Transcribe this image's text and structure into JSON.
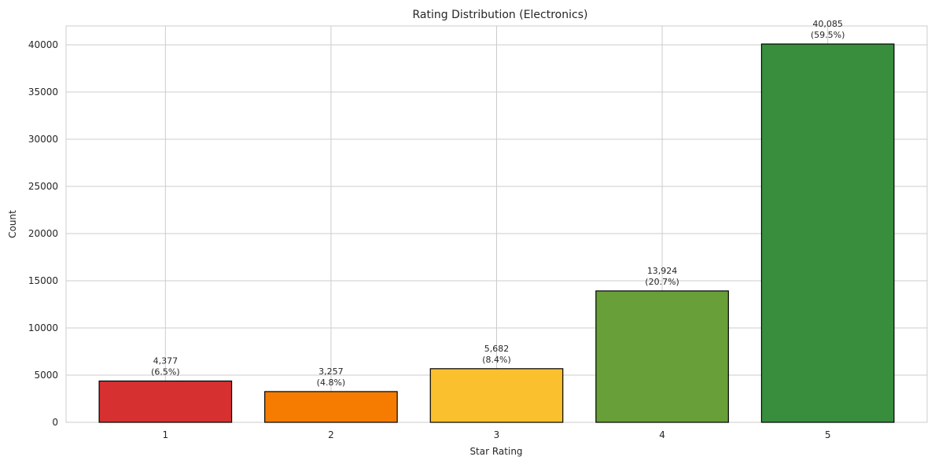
{
  "chart_data": {
    "type": "bar",
    "title": "Rating Distribution (Electronics)",
    "xlabel": "Star Rating",
    "ylabel": "Count",
    "categories": [
      "1",
      "2",
      "3",
      "4",
      "5"
    ],
    "values": [
      4377,
      3257,
      5682,
      13924,
      40085
    ],
    "value_labels": [
      "4,377",
      "3,257",
      "5,682",
      "13,924",
      "40,085"
    ],
    "percent_labels": [
      "(6.5%)",
      "(4.8%)",
      "(8.4%)",
      "(20.7%)",
      "(59.5%)"
    ],
    "colors": [
      "#d63031",
      "#f57c00",
      "#fbc02d",
      "#689f38",
      "#388e3c"
    ],
    "ylim": [
      0,
      42000
    ],
    "yticks": [
      0,
      5000,
      10000,
      15000,
      20000,
      25000,
      30000,
      35000,
      40000
    ],
    "grid": true
  }
}
